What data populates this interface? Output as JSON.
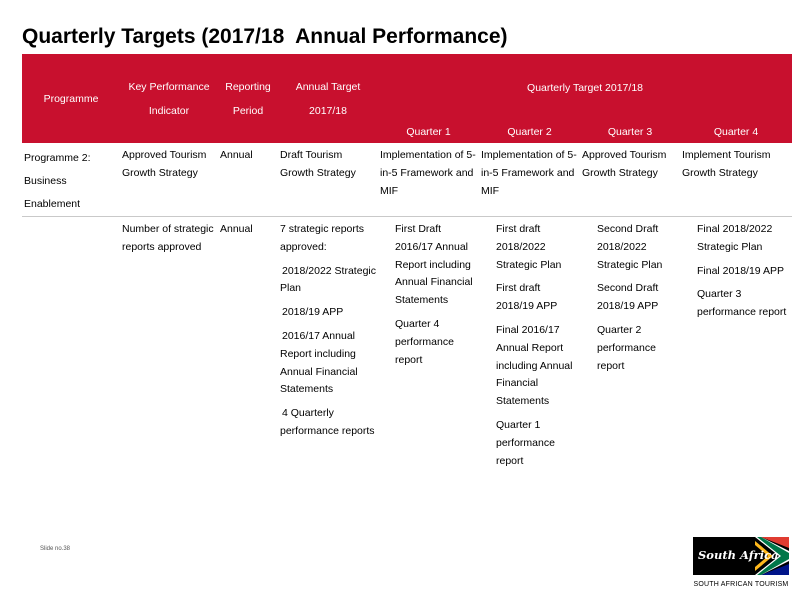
{
  "title": "Quarterly Targets (2017/18  Annual Performance)",
  "headers": {
    "programme": "Programme",
    "kpi_line1": "Key Performance",
    "kpi_line2": "Indicator",
    "period_line1": "Reporting",
    "period_line2": "Period",
    "annual_line1": "Annual Target",
    "annual_line2": "2017/18",
    "quarterly": "Quarterly Target 2017/18",
    "q1": "Quarter 1",
    "q2": "Quarter 2",
    "q3": "Quarter 3",
    "q4": "Quarter 4"
  },
  "bullet_glyph": "",
  "rows": [
    {
      "programme": [
        "Programme 2:",
        "Business",
        "Enablement"
      ],
      "kpi": "Approved Tourism Growth Strategy",
      "period": "Annual",
      "annual": "Draft Tourism Growth Strategy",
      "q1": "Implementation of 5-in-5 Framework and MIF",
      "q2": "Implementation of 5-in-5 Framework and MIF",
      "q3": "Approved Tourism Growth Strategy",
      "q4": "Implement Tourism Growth Strategy"
    },
    {
      "kpi": "Number of strategic reports approved",
      "period": "Annual",
      "annual_intro": "7 strategic reports approved:",
      "annual_items": [
        "2018/2022 Strategic Plan",
        "2018/19 APP",
        "2016/17 Annual Report including Annual Financial Statements",
        "4 Quarterly performance reports"
      ],
      "q1": [
        "First Draft 2016/17 Annual Report including Annual Financial Statements",
        "Quarter 4 performance report"
      ],
      "q2": [
        "First draft 2018/2022 Strategic Plan",
        "First draft 2018/19 APP",
        "Final 2016/17 Annual Report including Annual Financial Statements",
        "Quarter 1 performance report"
      ],
      "q3": [
        "Second Draft 2018/2022 Strategic Plan",
        "Second Draft 2018/19 APP",
        "Quarter 2 performance report"
      ],
      "q4": [
        "Final 2018/2022 Strategic Plan",
        "Final 2018/19 APP",
        "Quarter 3 performance report"
      ]
    }
  ],
  "footer": {
    "slide_no": "Slide no.38",
    "logo_text": "South Africa",
    "logo_caption": "SOUTH AFRICAN TOURISM"
  }
}
